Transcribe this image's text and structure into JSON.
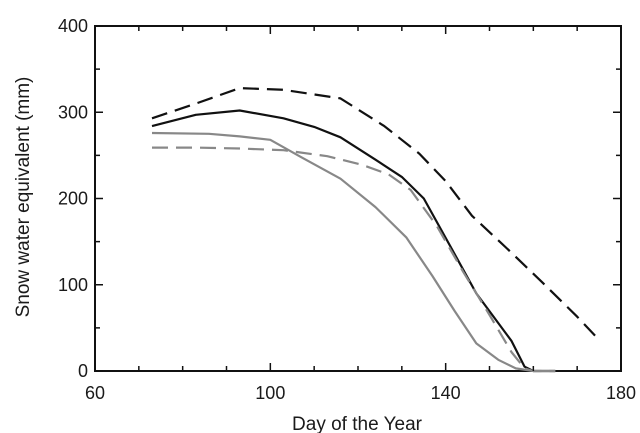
{
  "chart_data": {
    "type": "line",
    "title": "",
    "xlabel": "Day of the Year",
    "ylabel": "Snow water equivalent (mm)",
    "xlim": [
      60,
      180
    ],
    "ylim": [
      0,
      400
    ],
    "xticks": [
      60,
      100,
      140,
      180
    ],
    "yticks": [
      0,
      100,
      200,
      300,
      400
    ],
    "grid": false,
    "legend": "none",
    "series": [
      {
        "color": "#111111",
        "dash": "long-dash",
        "points": [
          [
            73,
            293
          ],
          [
            83,
            310
          ],
          [
            93,
            328
          ],
          [
            103,
            326
          ],
          [
            116,
            316
          ],
          [
            126,
            284
          ],
          [
            134,
            252
          ],
          [
            140,
            220
          ],
          [
            146,
            180
          ],
          [
            154,
            142
          ],
          [
            162,
            103
          ],
          [
            170,
            63
          ],
          [
            175,
            36
          ]
        ]
      },
      {
        "color": "#111111",
        "dash": "solid",
        "points": [
          [
            73,
            284
          ],
          [
            83,
            297
          ],
          [
            93,
            302
          ],
          [
            103,
            293
          ],
          [
            110,
            283
          ],
          [
            116,
            271
          ],
          [
            124,
            245
          ],
          [
            130,
            225
          ],
          [
            135,
            200
          ],
          [
            141,
            145
          ],
          [
            147,
            90
          ],
          [
            155,
            35
          ],
          [
            158,
            5
          ],
          [
            160,
            0
          ],
          [
            165,
            0
          ]
        ]
      },
      {
        "color": "#888888",
        "dash": "long-dash",
        "points": [
          [
            73,
            259
          ],
          [
            83,
            259
          ],
          [
            93,
            258
          ],
          [
            103,
            256
          ],
          [
            113,
            249
          ],
          [
            121,
            239
          ],
          [
            127,
            228
          ],
          [
            132,
            210
          ],
          [
            138,
            168
          ],
          [
            144,
            115
          ],
          [
            150,
            65
          ],
          [
            155,
            22
          ],
          [
            158,
            3
          ],
          [
            160,
            0
          ],
          [
            165,
            0
          ]
        ]
      },
      {
        "color": "#888888",
        "dash": "solid",
        "points": [
          [
            73,
            276
          ],
          [
            86,
            275
          ],
          [
            93,
            272
          ],
          [
            100,
            268
          ],
          [
            107,
            248
          ],
          [
            116,
            223
          ],
          [
            124,
            190
          ],
          [
            131,
            155
          ],
          [
            137,
            110
          ],
          [
            142,
            70
          ],
          [
            147,
            32
          ],
          [
            152,
            13
          ],
          [
            156,
            3
          ],
          [
            160,
            0
          ],
          [
            165,
            0
          ]
        ]
      }
    ]
  }
}
